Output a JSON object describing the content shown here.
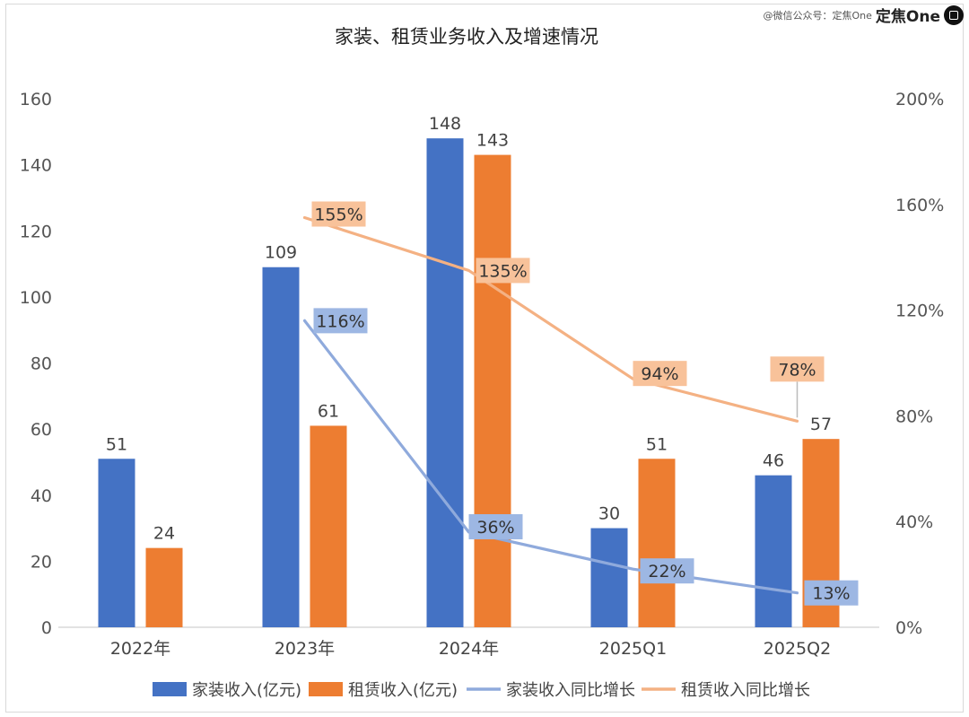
{
  "watermark": {
    "source": "@微信公众号：定焦One",
    "brand": "定焦One",
    "logo_icon": "dingjiao-logo-icon"
  },
  "chart_data": {
    "type": "bar",
    "title": "家装、租赁业务收入及增速情况",
    "categories": [
      "2022年",
      "2023年",
      "2024年",
      "2025Q1",
      "2025Q2"
    ],
    "ylim": [
      0,
      160
    ],
    "y_ticks": [
      0,
      20,
      40,
      60,
      80,
      100,
      120,
      140,
      160
    ],
    "y2lim": [
      0,
      200
    ],
    "y2_ticks": [
      "0%",
      "40%",
      "80%",
      "120%",
      "160%",
      "200%"
    ],
    "y2_tick_values": [
      0,
      40,
      80,
      120,
      160,
      200
    ],
    "grid": false,
    "legend_position": "bottom",
    "series": [
      {
        "name": "家装收入(亿元)",
        "kind": "bar",
        "axis": "left",
        "color": "#4472C4",
        "values": [
          51,
          109,
          148,
          30,
          46
        ],
        "labels": [
          "51",
          "109",
          "148",
          "30",
          "46"
        ]
      },
      {
        "name": "租赁收入(亿元)",
        "kind": "bar",
        "axis": "left",
        "color": "#ED7D31",
        "values": [
          24,
          61,
          143,
          51,
          57
        ],
        "labels": [
          "24",
          "61",
          "143",
          "51",
          "57"
        ]
      },
      {
        "name": "家装收入同比增长",
        "kind": "line",
        "axis": "right",
        "color": "#8FAADC",
        "label_bg": "#9DB7E3",
        "values": [
          null,
          116,
          36,
          22,
          13
        ],
        "labels": [
          "",
          "116%",
          "36%",
          "22%",
          "13%"
        ]
      },
      {
        "name": "租赁收入同比增长",
        "kind": "line",
        "axis": "right",
        "color": "#F4B183",
        "label_bg": "#F8C29A",
        "values": [
          null,
          155,
          135,
          94,
          78
        ],
        "labels": [
          "",
          "155%",
          "135%",
          "94%",
          "78%"
        ]
      }
    ]
  }
}
